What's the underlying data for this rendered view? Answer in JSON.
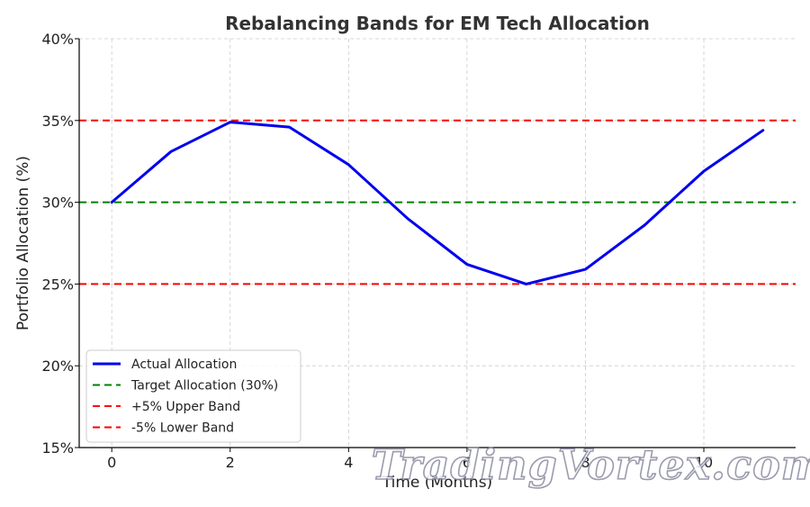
{
  "chart_data": {
    "type": "line",
    "title": "Rebalancing Bands for EM Tech Allocation",
    "xlabel": "Time (Months)",
    "ylabel": "Portfolio Allocation (%)",
    "xlim": [
      -0.55,
      11.55
    ],
    "ylim": [
      15,
      40
    ],
    "x_ticks": [
      0,
      2,
      4,
      6,
      8,
      10
    ],
    "y_ticks": [
      15,
      20,
      25,
      30,
      35,
      40
    ],
    "y_tick_labels": [
      "15%",
      "20%",
      "25%",
      "30%",
      "35%",
      "40%"
    ],
    "grid": true,
    "legend_position": "lower-left",
    "series": [
      {
        "name": "Actual Allocation",
        "style": "solid",
        "color": "#0000ee",
        "x": [
          0,
          1,
          2,
          3,
          4,
          5,
          6,
          7,
          8,
          9,
          10,
          11
        ],
        "values": [
          30.0,
          33.1,
          34.9,
          34.6,
          32.3,
          29.0,
          26.2,
          25.0,
          25.9,
          28.6,
          31.9,
          34.4
        ]
      },
      {
        "name": "Target Allocation (30%)",
        "style": "dashed",
        "color": "#008000",
        "y": 30
      },
      {
        "name": "+5% Upper Band",
        "style": "dashed",
        "color": "#ff0000",
        "y": 35
      },
      {
        "name": "-5% Lower Band",
        "style": "dashed",
        "color": "#ff0000",
        "y": 25
      }
    ]
  },
  "watermark": "TradingVortex.com"
}
